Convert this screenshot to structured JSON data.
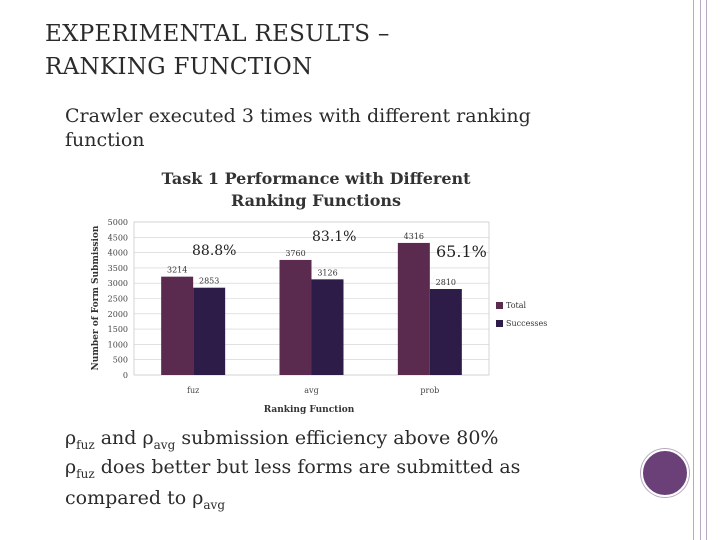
{
  "slide": {
    "title_line1": "EXPERIMENTAL RESULTS –",
    "title_line2": "RANKING FUNCTION",
    "bullet_glyph": "",
    "bullet1": "Crawler executed 3 times with different ranking function",
    "bullet2": {
      "rho": "ρ",
      "sub1": "fuz",
      "mid": " and ",
      "sub2": "avg",
      "rest": " submission efficiency above 80%"
    },
    "bullet3": {
      "rho": "ρ",
      "sub1": "fuz",
      "mid": " does better but less forms are submitted as compared to ",
      "sub2": "avg"
    },
    "accent_color": "#6b3f78"
  },
  "chart_data": {
    "type": "bar",
    "title": "Task 1 Performance with Different Ranking Functions",
    "title_line1": "Task 1 Performance with Different",
    "title_line2": "Ranking Functions",
    "xlabel": "Ranking Function",
    "ylabel": "Number of Form Submission",
    "categories": [
      "fuz",
      "avg",
      "prob"
    ],
    "ylim": [
      0,
      5000
    ],
    "yticks": [
      "0",
      "500",
      "1000",
      "1500",
      "2000",
      "2500",
      "3000",
      "3500",
      "4000",
      "4500",
      "5000"
    ],
    "series": [
      {
        "name": "Total",
        "values": [
          3214,
          3760,
          4316
        ],
        "color": "#5a2a4f"
      },
      {
        "name": "Successes",
        "values": [
          2853,
          3126,
          2810
        ],
        "color": "#2d1c48"
      }
    ],
    "annotations": [
      "88.8%",
      "83.1%",
      "65.1%"
    ],
    "legend_position": "right"
  }
}
